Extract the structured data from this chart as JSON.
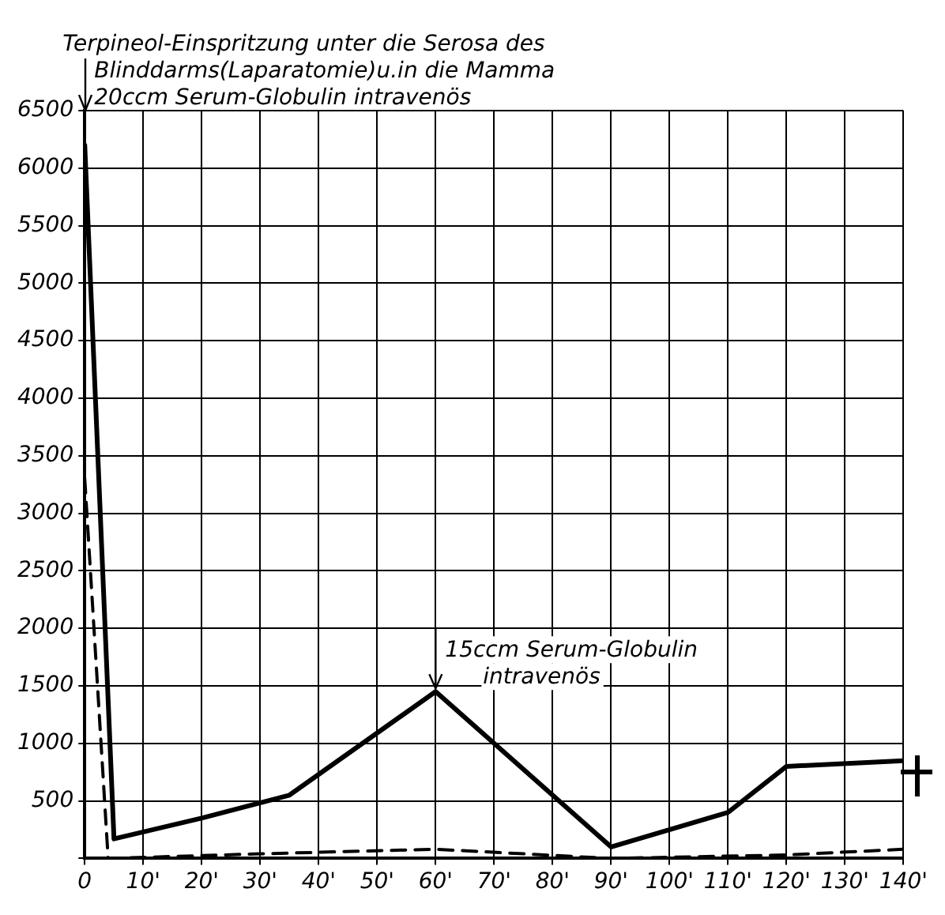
{
  "chart_data": {
    "type": "line",
    "xlim": [
      0,
      140
    ],
    "ylim": [
      0,
      6500
    ],
    "xticks": [
      0,
      {
        "value": 10,
        "label": "10'"
      },
      {
        "value": 20,
        "label": "20'"
      },
      {
        "value": 30,
        "label": "30'"
      },
      {
        "value": 40,
        "label": "40'"
      },
      {
        "value": 50,
        "label": "50'"
      },
      {
        "value": 60,
        "label": "60'"
      },
      {
        "value": 70,
        "label": "70'"
      },
      {
        "value": 80,
        "label": "80'"
      },
      {
        "value": 90,
        "label": "90'"
      },
      {
        "value": 100,
        "label": "100'"
      },
      {
        "value": 110,
        "label": "110'"
      },
      {
        "value": 120,
        "label": "120'"
      },
      {
        "value": 130,
        "label": "130'"
      },
      {
        "value": 140,
        "label": "140'"
      }
    ],
    "yticks": [
      {
        "value": 0,
        "label": null
      },
      500,
      1000,
      1500,
      2000,
      2500,
      3000,
      3500,
      4000,
      4500,
      5000,
      5500,
      6000,
      6500
    ],
    "series": [
      {
        "color": "#000000",
        "line_style": "solid",
        "x": [
          0,
          5,
          20,
          35,
          60,
          90,
          110,
          120,
          140
        ],
        "values": [
          6200,
          170,
          350,
          550,
          1450,
          100,
          400,
          800,
          850
        ]
      },
      {
        "color": "#000000",
        "line_style": "dashed",
        "x": [
          0,
          4,
          30,
          60,
          90,
          120,
          140
        ],
        "values": [
          3300,
          0,
          40,
          80,
          0,
          30,
          80
        ]
      }
    ],
    "annotations": [
      "Terpineol-Einspritzung unter die Serosa des Blinddarms(Laparatomie)u.in die Mamma",
      "20ccm Serum-Globulin intravenös",
      {
        "text": "15ccm Serum-Globulin intravenös",
        "x": 60,
        "y": 1450
      }
    ],
    "grid": true,
    "legend": false,
    "marker": "none"
  }
}
